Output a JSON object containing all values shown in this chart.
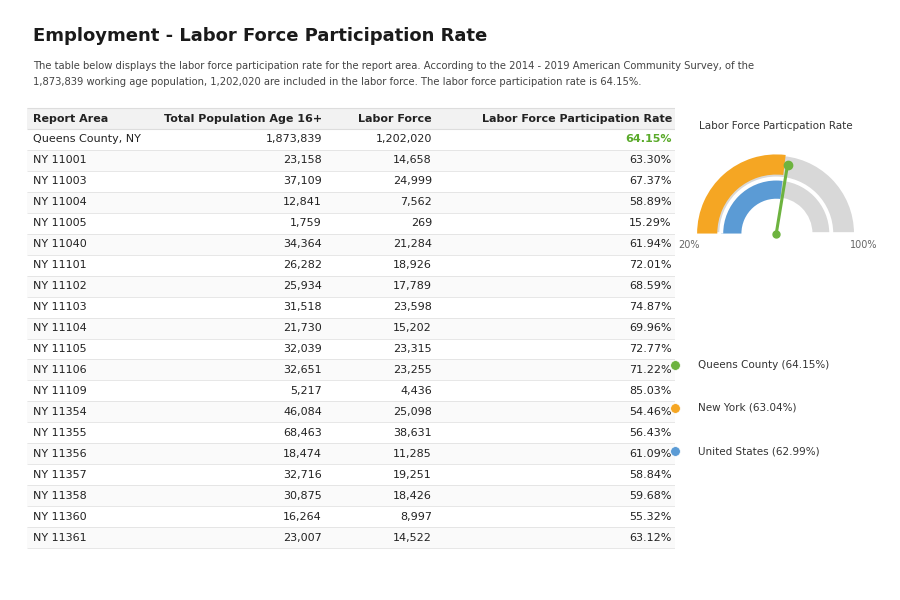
{
  "title": "Employment - Labor Force Participation Rate",
  "description_line1": "The table below displays the labor force participation rate for the report area. According to the 2014 - 2019 American Community Survey, of the",
  "description_line2": "1,873,839 working age population, 1,202,020 are included in the labor force. The labor force participation rate is 64.15%.",
  "table_headers": [
    "Report Area",
    "Total Population Age 16+",
    "Labor Force",
    "Labor Force Participation Rate"
  ],
  "table_data": [
    [
      "Queens County, NY",
      "1,873,839",
      "1,202,020",
      "64.15%"
    ],
    [
      "NY 11001",
      "23,158",
      "14,658",
      "63.30%"
    ],
    [
      "NY 11003",
      "37,109",
      "24,999",
      "67.37%"
    ],
    [
      "NY 11004",
      "12,841",
      "7,562",
      "58.89%"
    ],
    [
      "NY 11005",
      "1,759",
      "269",
      "15.29%"
    ],
    [
      "NY 11040",
      "34,364",
      "21,284",
      "61.94%"
    ],
    [
      "NY 11101",
      "26,282",
      "18,926",
      "72.01%"
    ],
    [
      "NY 11102",
      "25,934",
      "17,789",
      "68.59%"
    ],
    [
      "NY 11103",
      "31,518",
      "23,598",
      "74.87%"
    ],
    [
      "NY 11104",
      "21,730",
      "15,202",
      "69.96%"
    ],
    [
      "NY 11105",
      "32,039",
      "23,315",
      "72.77%"
    ],
    [
      "NY 11106",
      "32,651",
      "23,255",
      "71.22%"
    ],
    [
      "NY 11109",
      "5,217",
      "4,436",
      "85.03%"
    ],
    [
      "NY 11354",
      "46,084",
      "25,098",
      "54.46%"
    ],
    [
      "NY 11355",
      "68,463",
      "38,631",
      "56.43%"
    ],
    [
      "NY 11356",
      "18,474",
      "11,285",
      "61.09%"
    ],
    [
      "NY 11357",
      "32,716",
      "19,251",
      "58.84%"
    ],
    [
      "NY 11358",
      "30,875",
      "18,426",
      "59.68%"
    ],
    [
      "NY 11360",
      "16,264",
      "8,997",
      "55.32%"
    ],
    [
      "NY 11361",
      "23,007",
      "14,522",
      "63.12%"
    ]
  ],
  "first_row_rate_color": "#5aaa2a",
  "gauge_title": "Labor Force Particpation Rate",
  "gauge_min": 20,
  "gauge_max": 100,
  "queens_rate": 64.15,
  "ny_rate": 63.04,
  "us_rate": 62.99,
  "queens_color": "#6db33f",
  "ny_color": "#f5a623",
  "us_color": "#5b9bd5",
  "gauge_bg_color": "#d8d8d8",
  "legend_labels": [
    "Queens County (64.15%)",
    "New York (63.04%)",
    "United States (62.99%)"
  ],
  "bg_color": "#ffffff",
  "table_header_bg": "#f2f2f2",
  "table_row_bg1": "#ffffff",
  "table_row_bg2": "#fafafa",
  "table_border_color": "#dddddd",
  "body_font_size": 8.0,
  "title_font_size": 13
}
